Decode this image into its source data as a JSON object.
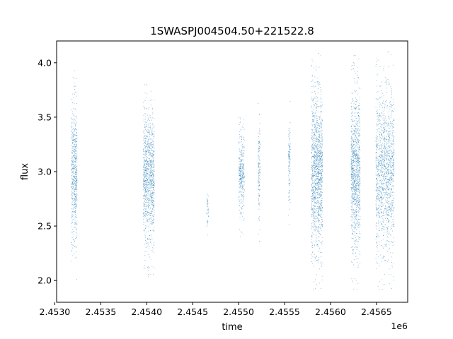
{
  "chart_data": {
    "type": "scatter",
    "title": "1SWASPJ004504.50+221522.8",
    "xlabel": "time",
    "ylabel": "flux",
    "x_offset_label": "1e6",
    "xlim": [
      2.45302,
      2.45684
    ],
    "ylim": [
      1.8,
      4.2
    ],
    "grid": false,
    "x_ticks": [
      2.453,
      2.4535,
      2.454,
      2.4545,
      2.455,
      2.4555,
      2.456,
      2.4565
    ],
    "x_tick_labels": [
      "2.4530",
      "2.4535",
      "2.4540",
      "2.4545",
      "2.4550",
      "2.4555",
      "2.4560",
      "2.4565"
    ],
    "y_ticks": [
      2.0,
      2.5,
      3.0,
      3.5,
      4.0
    ],
    "y_tick_labels": [
      "2.0",
      "2.5",
      "3.0",
      "3.5",
      "4.0"
    ],
    "point_color": "#1f77b4",
    "series": [
      {
        "observing_seasons": [
          {
            "x_range": [
              2.45318,
              2.45324
            ],
            "flux_center": 2.98,
            "flux_range": [
              1.95,
              3.93
            ]
          },
          {
            "x_range": [
              2.45396,
              2.45408
            ],
            "flux_center": 2.95,
            "flux_range": [
              2.03,
              3.8
            ]
          },
          {
            "x_range": [
              2.45465,
              2.45467
            ],
            "flux_center": 2.65,
            "flux_range": [
              2.42,
              2.88
            ]
          },
          {
            "x_range": [
              2.455,
              2.45506
            ],
            "flux_center": 3.0,
            "flux_range": [
              2.4,
              3.5
            ]
          },
          {
            "x_range": [
              2.45521,
              2.45523
            ],
            "flux_center": 3.0,
            "flux_range": [
              2.28,
              3.63
            ]
          },
          {
            "x_range": [
              2.45554,
              2.45556
            ],
            "flux_center": 3.1,
            "flux_range": [
              2.5,
              3.72
            ]
          },
          {
            "x_range": [
              2.45579,
              2.45591
            ],
            "flux_center": 3.0,
            "flux_range": [
              1.92,
              4.09
            ]
          },
          {
            "x_range": [
              2.45622,
              2.45632
            ],
            "flux_center": 3.0,
            "flux_range": [
              1.92,
              4.07
            ]
          },
          {
            "x_range": [
              2.45649,
              2.45669
            ],
            "flux_center": 3.0,
            "flux_range": [
              1.92,
              4.1
            ]
          }
        ]
      }
    ]
  }
}
